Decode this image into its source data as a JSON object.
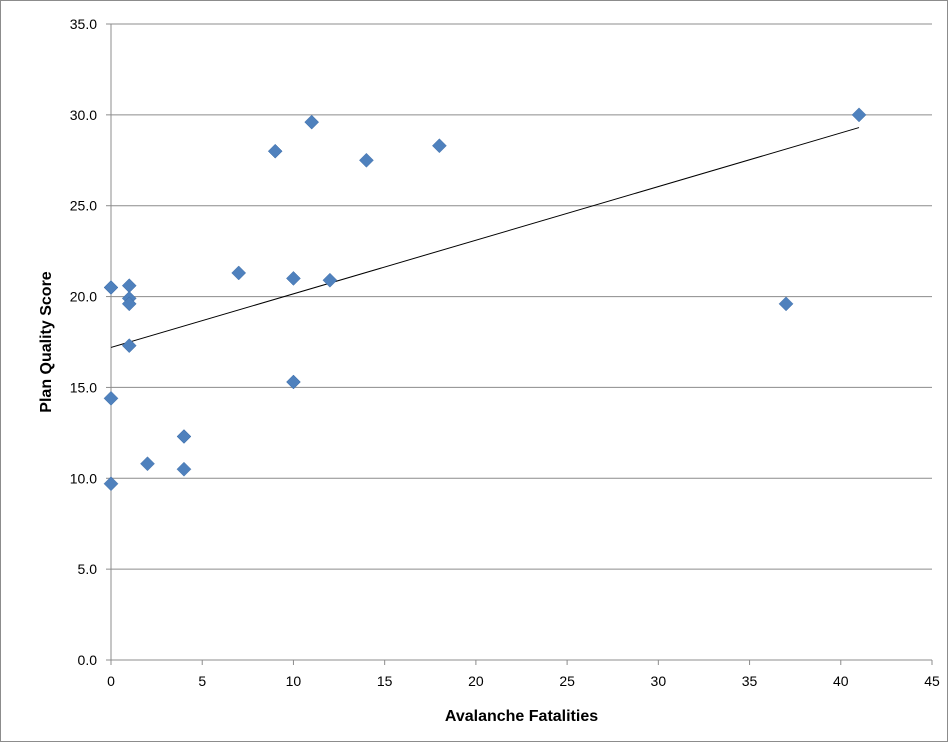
{
  "chart_data": {
    "type": "scatter",
    "title": "",
    "xlabel": "Avalanche Fatalities",
    "ylabel": "Plan Quality Score",
    "xlim": [
      0,
      45
    ],
    "ylim": [
      0,
      35
    ],
    "x_ticks": [
      "0",
      "5",
      "10",
      "15",
      "20",
      "25",
      "30",
      "35",
      "40",
      "45"
    ],
    "y_ticks": [
      "0.0",
      "5.0",
      "10.0",
      "15.0",
      "20.0",
      "25.0",
      "30.0",
      "35.0"
    ],
    "x_tick_values": [
      0,
      5,
      10,
      15,
      20,
      25,
      30,
      35,
      40,
      45
    ],
    "y_tick_values": [
      0,
      5,
      10,
      15,
      20,
      25,
      30,
      35
    ],
    "grid": "horizontal",
    "marker": "diamond",
    "marker_color": "#4F81BD",
    "trendline": {
      "type": "linear",
      "color": "#000000",
      "from": [
        0,
        17.2
      ],
      "to": [
        41,
        29.3
      ]
    },
    "points": [
      {
        "x": 0,
        "y": 20.5
      },
      {
        "x": 0,
        "y": 14.4
      },
      {
        "x": 0,
        "y": 9.7
      },
      {
        "x": 1,
        "y": 20.6
      },
      {
        "x": 1,
        "y": 19.9
      },
      {
        "x": 1,
        "y": 19.6
      },
      {
        "x": 1,
        "y": 17.3
      },
      {
        "x": 2,
        "y": 10.8
      },
      {
        "x": 4,
        "y": 12.3
      },
      {
        "x": 4,
        "y": 10.5
      },
      {
        "x": 7,
        "y": 21.3
      },
      {
        "x": 9,
        "y": 28.0
      },
      {
        "x": 10,
        "y": 21.0
      },
      {
        "x": 10,
        "y": 15.3
      },
      {
        "x": 11,
        "y": 29.6
      },
      {
        "x": 12,
        "y": 20.9
      },
      {
        "x": 14,
        "y": 27.5
      },
      {
        "x": 18,
        "y": 28.3
      },
      {
        "x": 37,
        "y": 19.6
      },
      {
        "x": 41,
        "y": 30.0
      }
    ]
  }
}
